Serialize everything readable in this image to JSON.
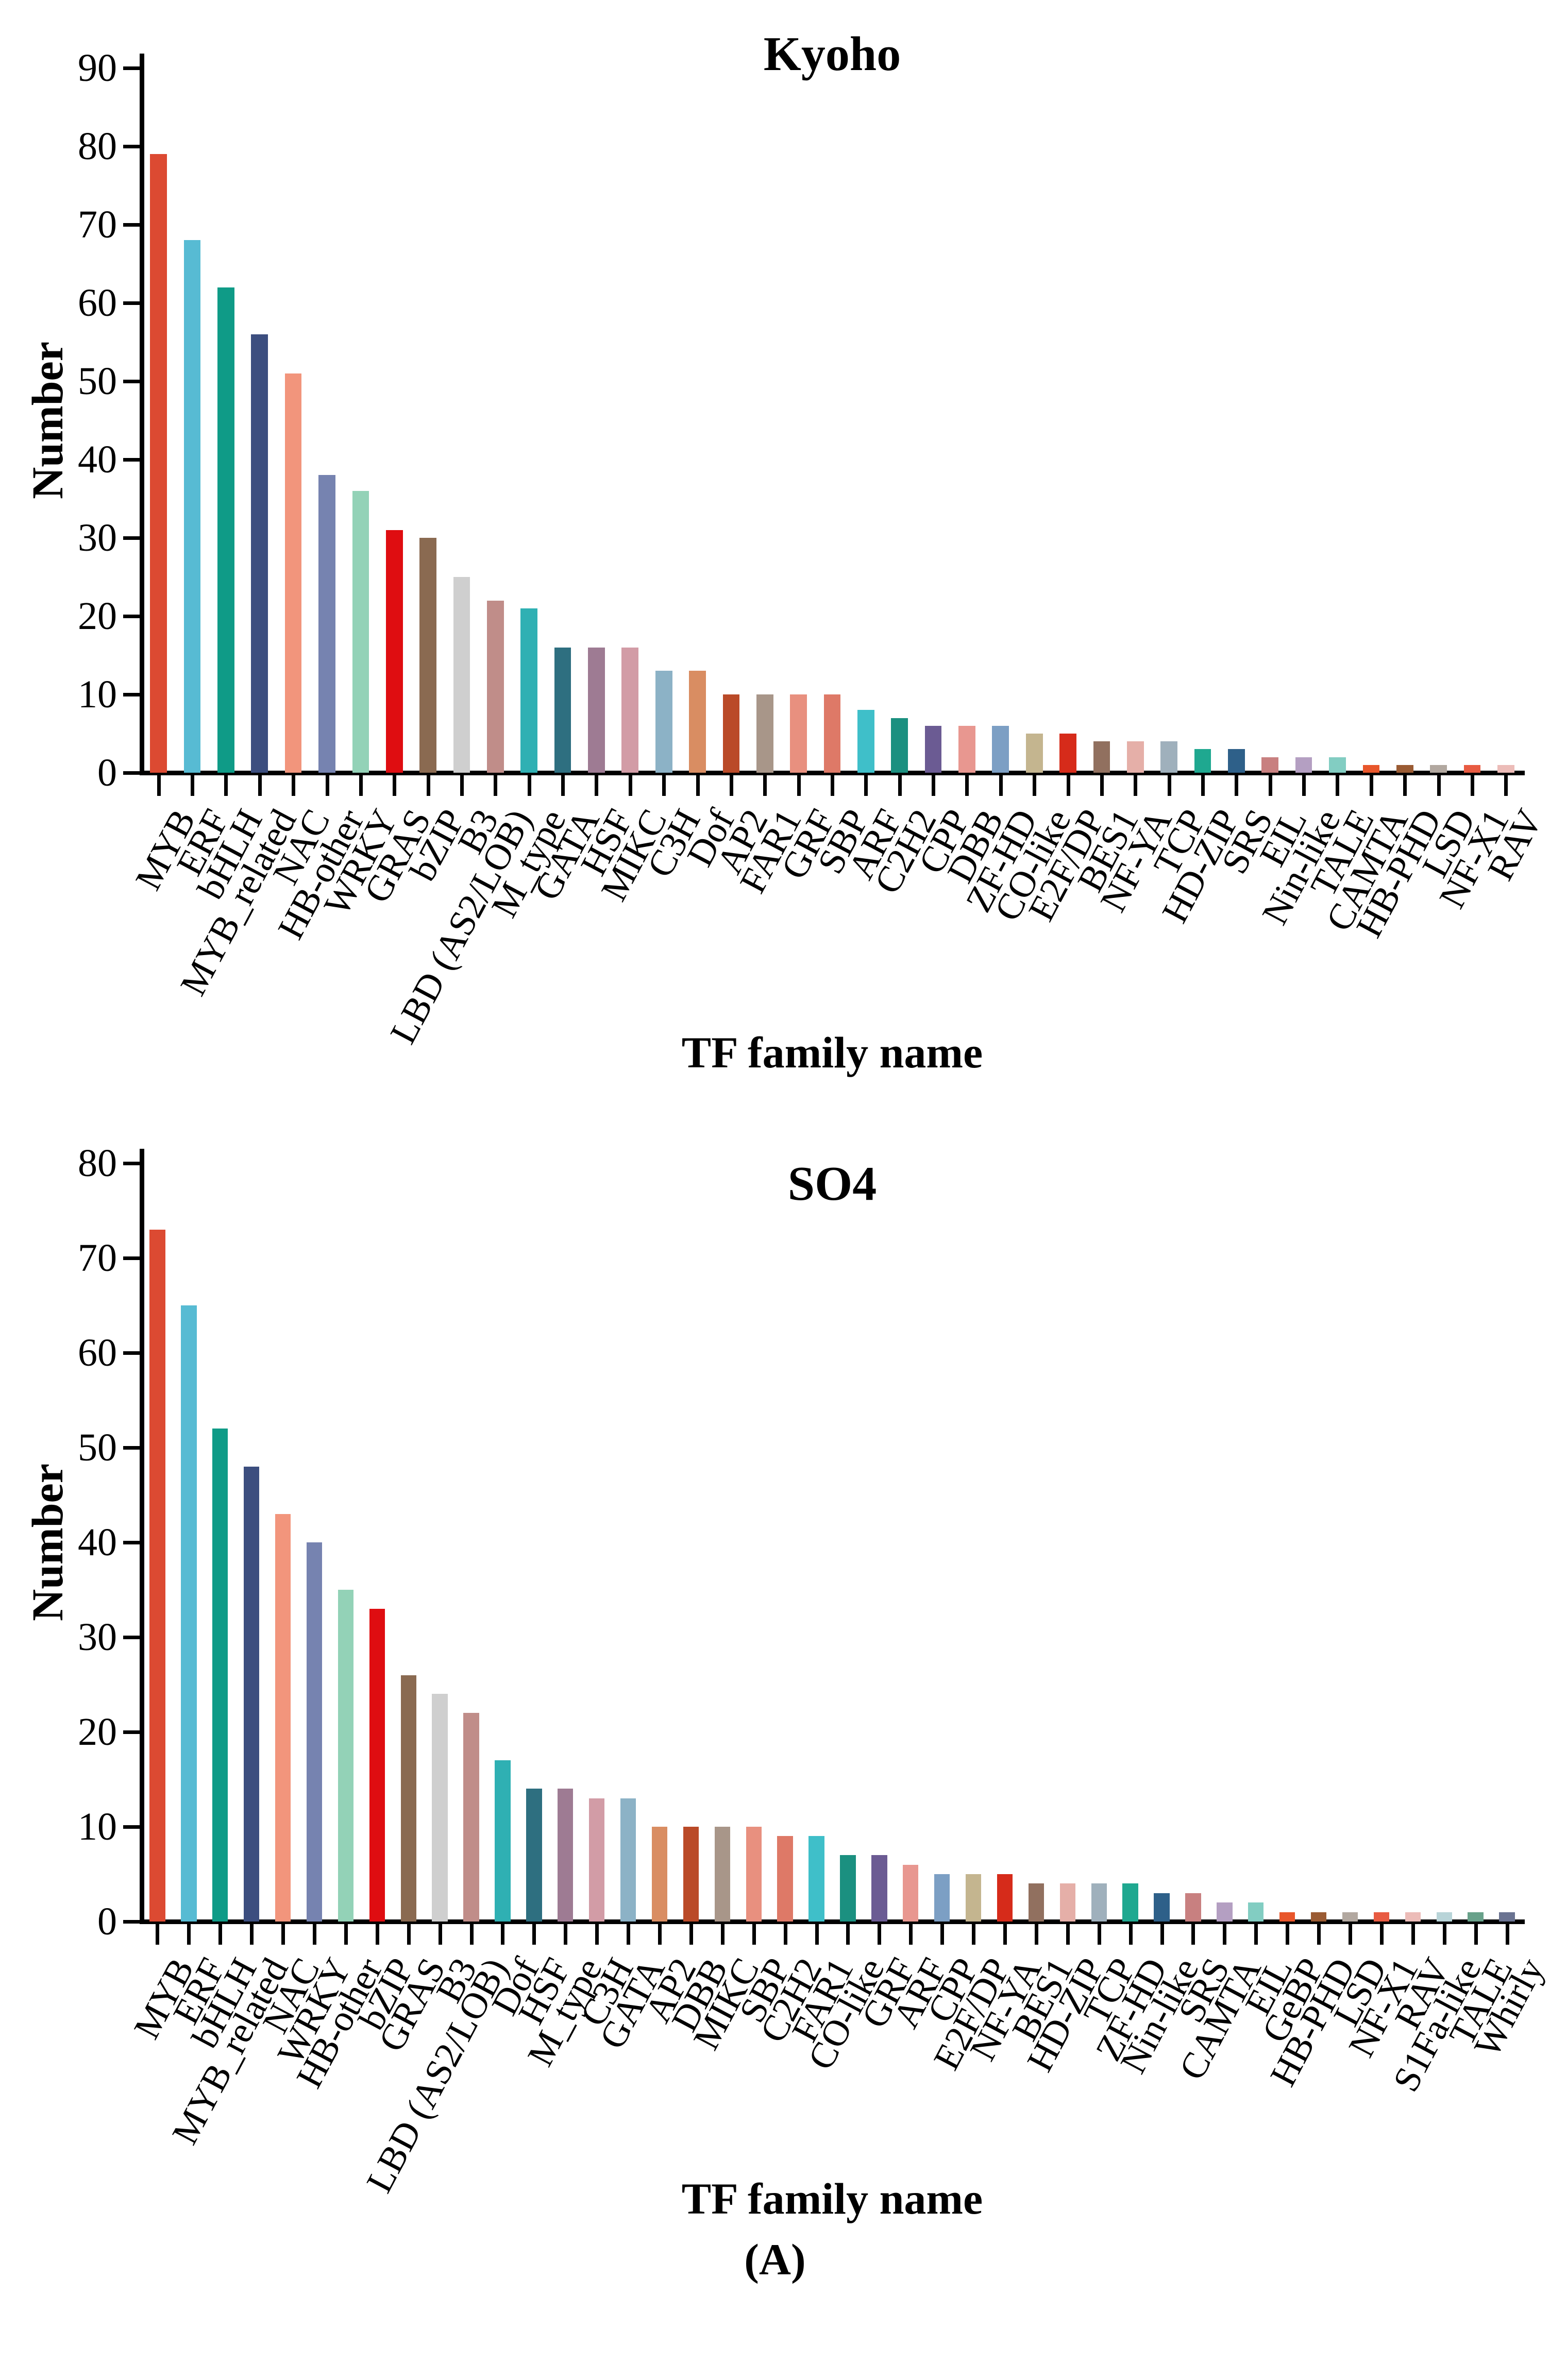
{
  "figure": {
    "caption": "(A)"
  },
  "palette": [
    "#DC4A32",
    "#57BBD3",
    "#0F9B87",
    "#3C4E7F",
    "#F2957C",
    "#7683B0",
    "#93D2B7",
    "#DF0D11",
    "#8A6A51",
    "#CFCFCF",
    "#C08D89",
    "#2FB0B3",
    "#2E6F80",
    "#9E7B93",
    "#D29CA6",
    "#8CB2C6",
    "#D98D62",
    "#BA4A28",
    "#A89689",
    "#E8907F",
    "#DE7967",
    "#3FBFC9",
    "#1B9080",
    "#6B5B93",
    "#E89790",
    "#7C9FC4",
    "#C4B58F",
    "#D62B1A",
    "#91705F",
    "#E5AFA8",
    "#9FB0BC",
    "#1FA890",
    "#2E6089",
    "#C88080",
    "#B49FC2",
    "#82CDC2",
    "#E8562B",
    "#9A5B33",
    "#B2A8A0",
    "#E85B42",
    "#ECBCB8",
    "#B8D4D8",
    "#68A18A",
    "#6A7391"
  ],
  "chart_data": [
    {
      "type": "bar",
      "title": "Kyoho",
      "xlabel": "TF family name",
      "ylabel": "Number",
      "ylim": [
        0,
        90
      ],
      "ytick_step": 10,
      "grid": false,
      "legend": "none",
      "categories": [
        "MYB",
        "ERF",
        "bHLH",
        "MYB_related",
        "NAC",
        "HB-other",
        "WRKY",
        "GRAS",
        "bZIP",
        "B3",
        "LBD (AS2/LOB)",
        "M_type",
        "GATA",
        "HSF",
        "MIKC",
        "C3H",
        "Dof",
        "AP2",
        "FAR1",
        "GRF",
        "SBP",
        "ARF",
        "C2H2",
        "CPP",
        "DBB",
        "ZF-HD",
        "CO-like",
        "E2F/DP",
        "BES1",
        "NF-YA",
        "TCP",
        "HD-ZIP",
        "SRS",
        "EIL",
        "Nin-like",
        "TALE",
        "CAMTA",
        "HB-PHD",
        "LSD",
        "NF-X1",
        "RAV"
      ],
      "values": [
        79,
        68,
        62,
        56,
        51,
        38,
        36,
        31,
        30,
        25,
        22,
        21,
        16,
        16,
        16,
        13,
        13,
        10,
        10,
        10,
        10,
        8,
        7,
        6,
        6,
        6,
        5,
        5,
        4,
        4,
        4,
        3,
        3,
        2,
        2,
        2,
        1,
        1,
        1,
        1,
        1
      ]
    },
    {
      "type": "bar",
      "title": "SO4",
      "xlabel": "TF family name",
      "ylabel": "Number",
      "ylim": [
        0,
        80
      ],
      "ytick_step": 10,
      "grid": false,
      "legend": "none",
      "categories": [
        "MYB",
        "ERF",
        "bHLH",
        "MYB_related",
        "NAC",
        "WRKY",
        "HB-other",
        "bZIP",
        "GRAS",
        "B3",
        "LBD (AS2/LOB)",
        "Dof",
        "HSF",
        "M_type",
        "C3H",
        "GATA",
        "AP2",
        "DBB",
        "MIKC",
        "SBP",
        "C2H2",
        "FAR1",
        "CO-like",
        "GRF",
        "ARF",
        "CPP",
        "E2F/DP",
        "NF-YA",
        "BES1",
        "HD-ZIP",
        "TCP",
        "ZF-HD",
        "Nin-like",
        "SRS",
        "CAMTA",
        "EIL",
        "GeBP",
        "HB-PHD",
        "LSD",
        "NF-X1",
        "RAV",
        "S1Fa-like",
        "TALE",
        "Whirly"
      ],
      "values": [
        73,
        65,
        52,
        48,
        43,
        40,
        35,
        33,
        26,
        24,
        22,
        17,
        14,
        14,
        13,
        13,
        10,
        10,
        10,
        10,
        9,
        9,
        7,
        7,
        6,
        5,
        5,
        5,
        4,
        4,
        4,
        4,
        3,
        3,
        2,
        2,
        1,
        1,
        1,
        1,
        1,
        1,
        1,
        1
      ]
    }
  ]
}
